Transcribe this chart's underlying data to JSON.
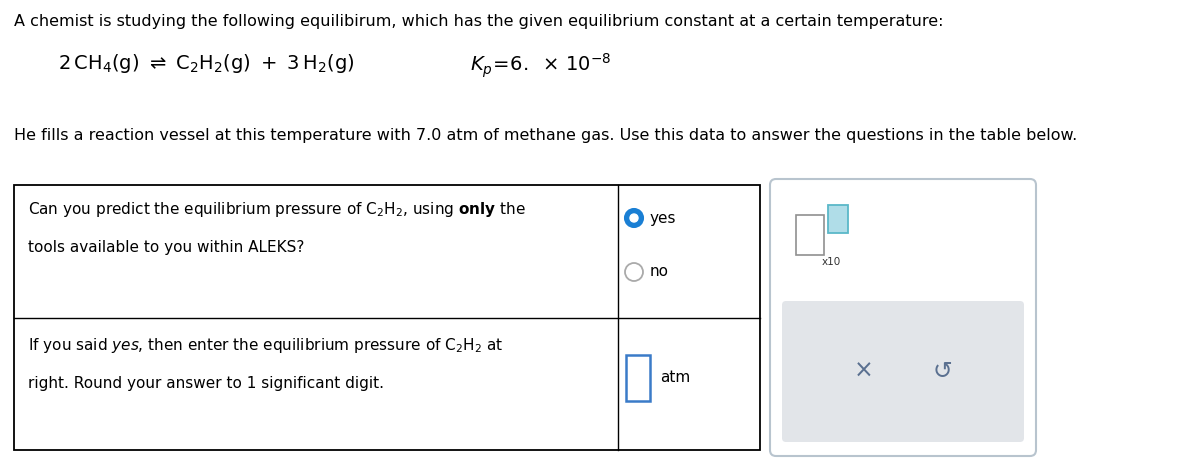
{
  "bg_color": "#ffffff",
  "title_text": "A chemist is studying the following equilibirum, which has the given equilibrium constant at a certain temperature:",
  "body_text": "He fills a reaction vessel at this temperature with 7.0 atm of methane gas. Use this data to answer the questions in the table below.",
  "yes_label": "yes",
  "no_label": "no",
  "atm_label": "atm",
  "x10_label": "x10",
  "table_border_color": "#000000",
  "radio_fill_color": "#1a7fd4",
  "radio_ring_color": "#1a7fd4",
  "input_border_color": "#3a7bc8",
  "widget_bg": "#e2e5e9",
  "widget_border": "#b8c4ce",
  "x_color": "#5a7090",
  "undo_color": "#5a7090",
  "teal_border": "#5ab8c8",
  "teal_fill": "#b0dde8",
  "font_size_title": 11.5,
  "font_size_body": 11.5,
  "font_size_eq": 14,
  "font_size_table": 11.0,
  "fig_width": 12.0,
  "fig_height": 4.66,
  "dpi": 100
}
